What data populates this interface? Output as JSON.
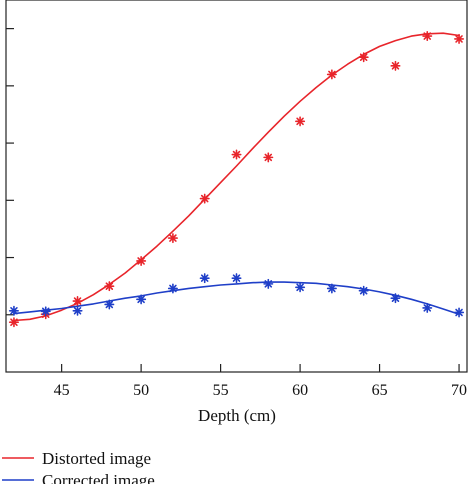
{
  "chart_data": {
    "type": "scatter",
    "xlabel": "Depth (cm)",
    "ylabel": "",
    "title": "",
    "xlim": [
      41.5,
      70.5
    ],
    "ylim": [
      0,
      6.5
    ],
    "x_ticks": [
      45,
      50,
      55,
      60,
      65,
      70
    ],
    "x_tick_labels": [
      "45",
      "50",
      "55",
      "60",
      "65",
      "70"
    ],
    "y_ticks": [
      1,
      2,
      3,
      4,
      5,
      6
    ],
    "legend_position": "bottom-left",
    "grid": false,
    "series": [
      {
        "name": "Distorted image",
        "color": "#e8252b",
        "marker": "asterisk",
        "points_x": [
          42,
          44,
          46,
          48,
          50,
          52,
          54,
          56,
          58,
          60,
          62,
          64,
          66,
          68,
          70
        ],
        "points_y": [
          0.87,
          1.01,
          1.24,
          1.5,
          1.94,
          2.34,
          3.03,
          3.8,
          3.75,
          4.38,
          5.2,
          5.5,
          5.35,
          5.87,
          5.82
        ],
        "fit_x": [
          42,
          43,
          44,
          45,
          46,
          47,
          48,
          49,
          50,
          51,
          52,
          53,
          54,
          55,
          56,
          57,
          58,
          59,
          60,
          61,
          62,
          63,
          64,
          65,
          66,
          67,
          68,
          69,
          70
        ],
        "fit_y": [
          0.9,
          0.92,
          0.98,
          1.08,
          1.2,
          1.35,
          1.53,
          1.73,
          1.96,
          2.2,
          2.46,
          2.73,
          3.02,
          3.31,
          3.6,
          3.9,
          4.19,
          4.47,
          4.73,
          4.97,
          5.19,
          5.38,
          5.55,
          5.69,
          5.79,
          5.87,
          5.91,
          5.92,
          5.88
        ]
      },
      {
        "name": "Corrected image",
        "color": "#1f3fc8",
        "marker": "asterisk",
        "points_x": [
          42,
          44,
          46,
          48,
          50,
          52,
          54,
          56,
          58,
          60,
          62,
          64,
          66,
          68,
          70
        ],
        "points_y": [
          1.07,
          1.06,
          1.07,
          1.18,
          1.27,
          1.46,
          1.64,
          1.64,
          1.54,
          1.48,
          1.46,
          1.42,
          1.29,
          1.12,
          1.04
        ],
        "fit_x": [
          42,
          43,
          44,
          45,
          46,
          47,
          48,
          49,
          50,
          51,
          52,
          53,
          54,
          55,
          56,
          57,
          58,
          59,
          60,
          61,
          62,
          63,
          64,
          65,
          66,
          67,
          68,
          69,
          70
        ],
        "fit_y": [
          1.02,
          1.05,
          1.08,
          1.11,
          1.15,
          1.19,
          1.24,
          1.29,
          1.33,
          1.38,
          1.42,
          1.46,
          1.49,
          1.52,
          1.54,
          1.56,
          1.57,
          1.57,
          1.56,
          1.55,
          1.52,
          1.49,
          1.45,
          1.4,
          1.34,
          1.27,
          1.19,
          1.1,
          1.01
        ]
      }
    ]
  }
}
